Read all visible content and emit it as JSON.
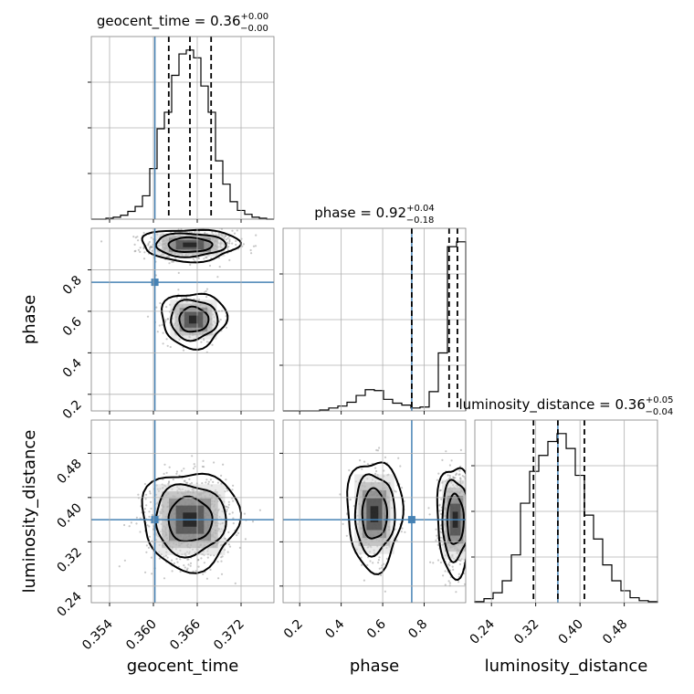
{
  "chart_data": [
    {
      "type": "corner",
      "parameters": [
        {
          "name": "geocent_time",
          "xlabel": "geocent_time",
          "title": {
            "base": "geocent_time = 0.36",
            "sup": "+0.00",
            "sub": "−0.00"
          },
          "ticks": [
            "0.354",
            "0.360",
            "0.366",
            "0.372"
          ],
          "tick_values": [
            0.354,
            0.36,
            0.366,
            0.372
          ],
          "range": [
            0.3515,
            0.3765
          ],
          "truth": 0.3602,
          "quantiles": [
            0.3621,
            0.365,
            0.3679
          ],
          "histogram": {
            "edges": [
              0.3515,
              0.3525,
              0.3535,
              0.3545,
              0.3555,
              0.3565,
              0.3575,
              0.3585,
              0.3595,
              0.3605,
              0.3615,
              0.3625,
              0.3635,
              0.3645,
              0.3655,
              0.3665,
              0.3675,
              0.3685,
              0.3695,
              0.3705,
              0.3715,
              0.3725,
              0.3735,
              0.3745,
              0.3755,
              0.3765
            ],
            "counts": [
              0,
              0,
              1,
              2,
              4,
              8,
              13,
              24,
              52,
              93,
              110,
              148,
              170,
              174,
              166,
              137,
              110,
              60,
              36,
              18,
              9,
              5,
              2,
              1,
              0
            ]
          }
        },
        {
          "name": "phase",
          "ylabel": "phase",
          "xlabel": "phase",
          "title": {
            "base": "phase = 0.92",
            "sup": "+0.04",
            "sub": "−0.18"
          },
          "ticks": [
            "0.2",
            "0.4",
            "0.6",
            "0.8"
          ],
          "tick_values": [
            0.2,
            0.4,
            0.6,
            0.8
          ],
          "range": [
            0.12,
            1.0
          ],
          "truth": 0.74,
          "quantiles": [
            0.74,
            0.92,
            0.96
          ],
          "histogram": {
            "edges": [
              0.12,
              0.164,
              0.208,
              0.252,
              0.296,
              0.34,
              0.384,
              0.428,
              0.472,
              0.516,
              0.56,
              0.604,
              0.648,
              0.692,
              0.736,
              0.78,
              0.824,
              0.868,
              0.912,
              0.956,
              1.0
            ],
            "counts": [
              0,
              0,
              0,
              0,
              1,
              3,
              5,
              9,
              16,
              22,
              21,
              12,
              8,
              6,
              3,
              4,
              20,
              60,
              170,
              175
            ]
          }
        },
        {
          "name": "luminosity_distance",
          "ylabel": "luminosity_distance",
          "xlabel": "luminosity_distance",
          "title": {
            "base": "luminosity_distance = 0.36",
            "sup": "+0.05",
            "sub": "−0.04"
          },
          "ticks": [
            "0.24",
            "0.32",
            "0.40",
            "0.48"
          ],
          "tick_values": [
            0.24,
            0.32,
            0.4,
            0.48
          ],
          "range": [
            0.21,
            0.54
          ],
          "truth": 0.36,
          "quantiles": [
            0.316,
            0.36,
            0.408
          ],
          "histogram": {
            "edges": [
              0.21,
              0.2265,
              0.243,
              0.2595,
              0.276,
              0.2925,
              0.309,
              0.3255,
              0.342,
              0.3585,
              0.375,
              0.3915,
              0.408,
              0.4245,
              0.441,
              0.4575,
              0.474,
              0.4905,
              0.507,
              0.5235,
              0.54
            ],
            "counts": [
              1,
              4,
              10,
              22,
              48,
              100,
              132,
              148,
              162,
              170,
              155,
              128,
              88,
              64,
              38,
              22,
              12,
              5,
              2,
              1
            ]
          }
        }
      ],
      "scatter_centers": {
        "geocent_time-phase": [
          {
            "x": 0.365,
            "y": 0.92,
            "sx": 0.003,
            "sy": 0.035,
            "n": 700
          },
          {
            "x": 0.3655,
            "y": 0.56,
            "sx": 0.002,
            "sy": 0.06,
            "n": 280
          }
        ],
        "geocent_time-luminosity_distance": [
          {
            "x": 0.365,
            "y": 0.36,
            "sx": 0.003,
            "sy": 0.04,
            "n": 900
          }
        ],
        "phase-luminosity_distance": [
          {
            "x": 0.95,
            "y": 0.36,
            "sx": 0.04,
            "sy": 0.045,
            "n": 650
          },
          {
            "x": 0.56,
            "y": 0.37,
            "sx": 0.06,
            "sy": 0.045,
            "n": 300
          }
        ]
      },
      "truth_marker_color": "#4682b4"
    }
  ]
}
